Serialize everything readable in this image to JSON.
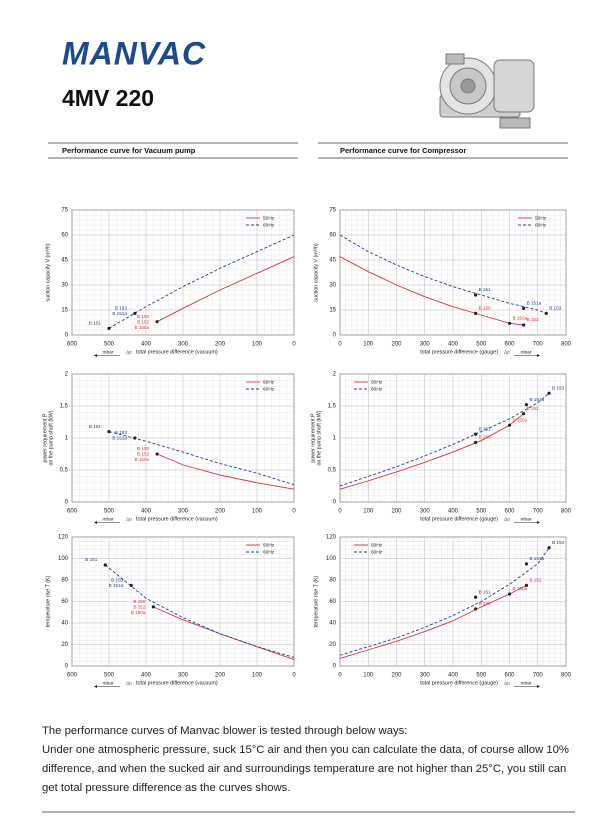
{
  "header": {
    "logo": "MANVAC",
    "model": "4MV 220"
  },
  "sections": [
    "Performance curve for Vacuum pump",
    "Performance curve for Compressor"
  ],
  "chart_data": [
    {
      "type": "line",
      "y_label": [
        "suction capacity V (m³/h)"
      ],
      "x_label": "total pressure difference (vacuum)",
      "unit_label": "mbar",
      "delta_label": "Δp",
      "xlim": [
        600,
        0
      ],
      "ylim": [
        0,
        75
      ],
      "xticks": [
        600,
        500,
        400,
        300,
        200,
        100,
        0
      ],
      "yticks": [
        0,
        15,
        30,
        45,
        60,
        75
      ],
      "grid": true,
      "legend": "upper right",
      "series": [
        {
          "name": "50Hz",
          "color": "#d9333f",
          "dash": false,
          "x": [
            370,
            300,
            200,
            100,
            0
          ],
          "values": [
            8,
            16,
            27,
            37,
            47
          ]
        },
        {
          "name": "60Hz",
          "color": "#1f3f8f",
          "dash": true,
          "x": [
            500,
            400,
            300,
            200,
            100,
            0
          ],
          "values": [
            4,
            17,
            29,
            40,
            50,
            60
          ]
        }
      ],
      "points": [
        {
          "labels": [
            "B 150",
            "B 152",
            "B 150a"
          ],
          "color": "#d9333f",
          "x": 370,
          "y": 8
        },
        {
          "labels": [
            "B 151"
          ],
          "color": "#1f3f8f",
          "x": 500,
          "y": 4
        },
        {
          "labels": [
            "B 153",
            "B 151a"
          ],
          "color": "#1f3f8f",
          "x": 430,
          "y": 13
        }
      ]
    },
    {
      "type": "line",
      "y_label": [
        "suction capacity V (m³/h)"
      ],
      "x_label": "total pressure difference (gauge)",
      "unit_label": "mbar",
      "delta_label": "Δp",
      "xlim": [
        0,
        800
      ],
      "ylim": [
        0,
        75
      ],
      "xticks": [
        0,
        100,
        200,
        300,
        400,
        500,
        600,
        700,
        800
      ],
      "yticks": [
        0,
        15,
        30,
        45,
        60,
        75
      ],
      "grid": true,
      "legend": "upper right",
      "series": [
        {
          "name": "50Hz",
          "color": "#d9333f",
          "dash": false,
          "x": [
            0,
            100,
            200,
            300,
            400,
            500,
            600,
            650
          ],
          "values": [
            47,
            38,
            30,
            23,
            17,
            12,
            7,
            6
          ]
        },
        {
          "name": "60Hz",
          "color": "#1f3f8f",
          "dash": true,
          "x": [
            0,
            100,
            200,
            300,
            400,
            500,
            600,
            700,
            730
          ],
          "values": [
            60,
            50,
            42,
            35,
            29,
            24,
            19,
            15,
            13
          ]
        }
      ],
      "points": [
        {
          "labels": [
            "B 150"
          ],
          "color": "#d9333f",
          "x": 480,
          "y": 13
        },
        {
          "labels": [
            "B 150a"
          ],
          "color": "#d9333f",
          "x": 600,
          "y": 7
        },
        {
          "labels": [
            "B 152"
          ],
          "color": "#d9333f",
          "x": 650,
          "y": 6
        },
        {
          "labels": [
            "B 151"
          ],
          "color": "#1f3f8f",
          "x": 480,
          "y": 24
        },
        {
          "labels": [
            "B 151a"
          ],
          "color": "#1f3f8f",
          "x": 650,
          "y": 16
        },
        {
          "labels": [
            "B 153"
          ],
          "color": "#1f3f8f",
          "x": 730,
          "y": 13
        }
      ]
    },
    {
      "type": "line",
      "y_label": [
        "power requirement P",
        "on the pump shaft (kW)"
      ],
      "x_label": "total pressure difference (vacuum)",
      "unit_label": "mbar",
      "delta_label": "Δp",
      "xlim": [
        600,
        0
      ],
      "ylim": [
        0,
        2
      ],
      "xticks": [
        600,
        500,
        400,
        300,
        200,
        100,
        0
      ],
      "yticks": [
        0,
        {
          "value": 0.5,
          "label": "0,5"
        },
        1,
        {
          "value": 1.5,
          "label": "1,5"
        },
        2
      ],
      "grid": true,
      "legend": "upper right",
      "series": [
        {
          "name": "50Hz",
          "color": "#d9333f",
          "dash": false,
          "x": [
            370,
            300,
            200,
            100,
            0
          ],
          "values": [
            0.75,
            0.58,
            0.42,
            0.3,
            0.2
          ]
        },
        {
          "name": "60Hz",
          "color": "#1f3f8f",
          "dash": true,
          "x": [
            500,
            400,
            300,
            200,
            100,
            0
          ],
          "values": [
            1.1,
            0.95,
            0.78,
            0.6,
            0.45,
            0.27
          ]
        }
      ],
      "points": [
        {
          "labels": [
            "B 150",
            "B 152",
            "B 150a"
          ],
          "color": "#d9333f",
          "x": 370,
          "y": 0.75
        },
        {
          "labels": [
            "B 151"
          ],
          "color": "#1f3f8f",
          "x": 500,
          "y": 1.1
        },
        {
          "labels": [
            "B 153",
            "B 151a"
          ],
          "color": "#1f3f8f",
          "x": 430,
          "y": 1
        }
      ]
    },
    {
      "type": "line",
      "y_label": [
        "power requirement P",
        "on the pump shaft (kW)"
      ],
      "x_label": "total pressure difference (gauge)",
      "unit_label": "mbar",
      "delta_label": "Δp",
      "xlim": [
        0,
        800
      ],
      "ylim": [
        0,
        2
      ],
      "xticks": [
        0,
        100,
        200,
        300,
        400,
        500,
        600,
        700,
        800
      ],
      "yticks": [
        0,
        {
          "value": 0.5,
          "label": "0,5"
        },
        1,
        {
          "value": 1.5,
          "label": "1,5"
        },
        2
      ],
      "grid": true,
      "legend": "upper left",
      "series": [
        {
          "name": "50Hz",
          "color": "#d9333f",
          "dash": false,
          "x": [
            0,
            100,
            200,
            300,
            400,
            500,
            600,
            650
          ],
          "values": [
            0.2,
            0.33,
            0.47,
            0.62,
            0.78,
            0.96,
            1.2,
            1.38
          ]
        },
        {
          "name": "60Hz",
          "color": "#1f3f8f",
          "dash": true,
          "x": [
            0,
            100,
            200,
            300,
            400,
            500,
            600,
            700,
            740
          ],
          "values": [
            0.25,
            0.4,
            0.55,
            0.72,
            0.9,
            1.1,
            1.3,
            1.55,
            1.7
          ]
        }
      ],
      "points": [
        {
          "labels": [
            "B 150"
          ],
          "color": "#d9333f",
          "x": 480,
          "y": 0.93
        },
        {
          "labels": [
            "B 150a"
          ],
          "color": "#d9333f",
          "x": 600,
          "y": 1.2
        },
        {
          "labels": [
            "B 152"
          ],
          "color": "#d9333f",
          "x": 650,
          "y": 1.38
        },
        {
          "labels": [
            "B 151"
          ],
          "color": "#1f3f8f",
          "x": 480,
          "y": 1.06
        },
        {
          "labels": [
            "B 151a"
          ],
          "color": "#1f3f8f",
          "x": 660,
          "y": 1.52
        },
        {
          "labels": [
            "B 153"
          ],
          "color": "#1f3f8f",
          "x": 740,
          "y": 1.7
        }
      ]
    },
    {
      "type": "line",
      "y_label": [
        "temperature rise T (K)"
      ],
      "x_label": "total pressure difference (vacuum)",
      "unit_label": "mbar",
      "delta_label": "Δp",
      "xlim": [
        600,
        0
      ],
      "ylim": [
        0,
        120
      ],
      "xticks": [
        600,
        500,
        400,
        300,
        200,
        100,
        0
      ],
      "yticks": [
        0,
        20,
        40,
        60,
        80,
        100,
        120
      ],
      "grid": true,
      "legend": "upper right",
      "series": [
        {
          "name": "50Hz",
          "color": "#d9333f",
          "dash": false,
          "x": [
            380,
            300,
            200,
            100,
            0
          ],
          "values": [
            55,
            43,
            30,
            18,
            6
          ]
        },
        {
          "name": "60Hz",
          "color": "#1f3f8f",
          "dash": true,
          "x": [
            510,
            400,
            300,
            200,
            100,
            0
          ],
          "values": [
            94,
            63,
            45,
            30,
            18,
            8
          ]
        }
      ],
      "points": [
        {
          "labels": [
            "B 150",
            "B 152",
            "B 150a"
          ],
          "color": "#d9333f",
          "x": 380,
          "y": 55
        },
        {
          "labels": [
            "B 151"
          ],
          "color": "#1f3f8f",
          "x": 510,
          "y": 94
        },
        {
          "labels": [
            "B 153",
            "B 151a"
          ],
          "color": "#1f3f8f",
          "x": 440,
          "y": 75
        }
      ]
    },
    {
      "type": "line",
      "y_label": [
        "temperature rise T (K)"
      ],
      "x_label": "total pressure difference (gauge)",
      "unit_label": "mbar",
      "delta_label": "Δp",
      "xlim": [
        0,
        800
      ],
      "ylim": [
        0,
        120
      ],
      "xticks": [
        0,
        100,
        200,
        300,
        400,
        500,
        600,
        700,
        800
      ],
      "yticks": [
        0,
        20,
        40,
        60,
        80,
        100,
        120
      ],
      "grid": true,
      "legend": "upper left",
      "series": [
        {
          "name": "50Hz",
          "color": "#d9333f",
          "dash": false,
          "x": [
            0,
            100,
            200,
            300,
            400,
            500,
            600,
            660
          ],
          "values": [
            7,
            15,
            23,
            32,
            42,
            55,
            67,
            75
          ]
        },
        {
          "name": "60Hz",
          "color": "#1f3f8f",
          "dash": true,
          "x": [
            0,
            100,
            200,
            300,
            400,
            500,
            600,
            700,
            740
          ],
          "values": [
            10,
            18,
            26,
            36,
            47,
            60,
            76,
            95,
            110
          ]
        }
      ],
      "points": [
        {
          "labels": [
            "B 150"
          ],
          "color": "#d9333f",
          "x": 480,
          "y": 53
        },
        {
          "labels": [
            "B 150a"
          ],
          "color": "#d9333f",
          "x": 600,
          "y": 67
        },
        {
          "labels": [
            "B 152"
          ],
          "color": "#d9333f",
          "x": 660,
          "y": 75
        },
        {
          "labels": [
            "B 151"
          ],
          "color": "#1f3f8f",
          "x": 480,
          "y": 64
        },
        {
          "labels": [
            "B 151a"
          ],
          "color": "#1f3f8f",
          "x": 660,
          "y": 95
        },
        {
          "labels": [
            "B 153"
          ],
          "color": "#1f3f8f",
          "x": 740,
          "y": 110
        }
      ]
    }
  ],
  "footer": {
    "intro": "The performance curves of Manvac blower is tested through below ways:",
    "body": "Under one atmospheric pressure, suck 15°C air and then you can calculate the data, of course allow 10% difference, and when the sucked air and surroundings temperature are not higher than 25°C, you still can get total pressure difference as the curves shows."
  }
}
